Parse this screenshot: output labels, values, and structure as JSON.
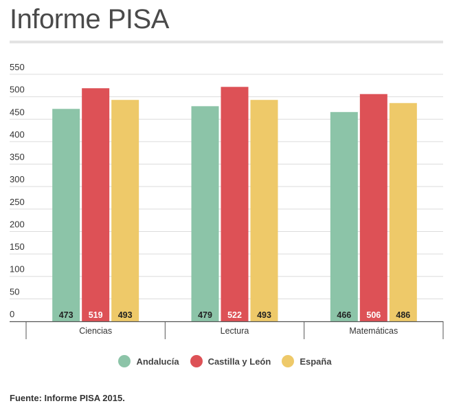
{
  "title": "Informe PISA",
  "source": "Fuente: Informe PISA 2015.",
  "chart_data": {
    "type": "bar",
    "categories": [
      "Ciencias",
      "Lectura",
      "Matemáticas"
    ],
    "series": [
      {
        "name": "Andalucía",
        "color": "#8cc4a8",
        "values": [
          473,
          479,
          466
        ]
      },
      {
        "name": "Castilla y León",
        "color": "#dd5156",
        "values": [
          519,
          522,
          506
        ]
      },
      {
        "name": "España",
        "color": "#eec969",
        "values": [
          493,
          493,
          486
        ]
      }
    ],
    "yticks": [
      0,
      50,
      100,
      150,
      200,
      250,
      300,
      350,
      400,
      450,
      500,
      550
    ],
    "ylim": [
      0,
      550
    ],
    "grid": true,
    "legend_position": "bottom"
  }
}
